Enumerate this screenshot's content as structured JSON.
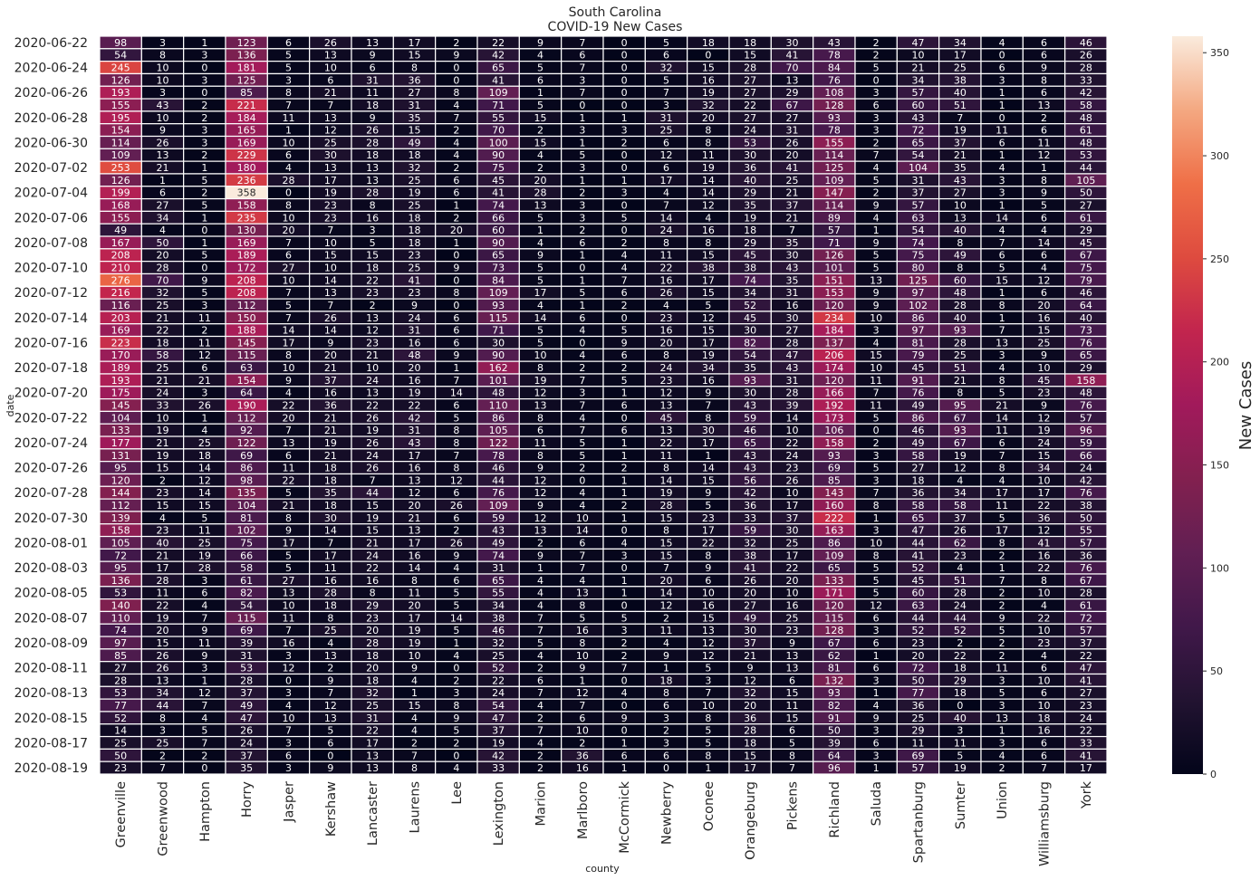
{
  "chart_data": {
    "type": "heatmap",
    "title": "South Carolina",
    "subtitle": "COVID-19 New Cases",
    "xlabel": "county",
    "ylabel": "date",
    "colorbar_label": "New Cases",
    "colorbar_ticks": [
      "0",
      "50",
      "100",
      "150",
      "200",
      "250",
      "300",
      "350"
    ],
    "vmin": 0,
    "vmax": 358,
    "colormap": "rocket",
    "counties": [
      "Greenville",
      "Greenwood",
      "Hampton",
      "Horry",
      "Jasper",
      "Kershaw",
      "Lancaster",
      "Laurens",
      "Lee",
      "Lexington",
      "Marion",
      "Marlboro",
      "McCormick",
      "Newberry",
      "Oconee",
      "Orangeburg",
      "Pickens",
      "Richland",
      "Saluda",
      "Spartanburg",
      "Sumter",
      "Union",
      "Williamsburg",
      "York"
    ],
    "date_tick_labels": [
      "2020-06-22",
      "2020-06-24",
      "2020-06-26",
      "2020-06-28",
      "2020-06-30",
      "2020-07-02",
      "2020-07-04",
      "2020-07-06",
      "2020-07-08",
      "2020-07-10",
      "2020-07-12",
      "2020-07-14",
      "2020-07-16",
      "2020-07-18",
      "2020-07-20",
      "2020-07-22",
      "2020-07-24",
      "2020-07-26",
      "2020-07-28",
      "2020-07-30",
      "2020-08-01",
      "2020-08-03",
      "2020-08-05",
      "2020-08-07",
      "2020-08-09",
      "2020-08-11",
      "2020-08-13",
      "2020-08-15",
      "2020-08-17",
      "2020-08-19"
    ],
    "values": [
      [
        98,
        3,
        1,
        123,
        6,
        26,
        13,
        17,
        2,
        22,
        9,
        7,
        0,
        5,
        18,
        18,
        30,
        43,
        2,
        47,
        34,
        4,
        6,
        46
      ],
      [
        54,
        8,
        3,
        136,
        5,
        13,
        9,
        15,
        9,
        42,
        4,
        6,
        0,
        6,
        0,
        15,
        41,
        78,
        2,
        10,
        17,
        0,
        6,
        26
      ],
      [
        245,
        10,
        0,
        181,
        5,
        10,
        6,
        8,
        0,
        65,
        5,
        7,
        0,
        32,
        15,
        28,
        70,
        84,
        5,
        21,
        25,
        6,
        9,
        28
      ],
      [
        126,
        10,
        3,
        125,
        3,
        6,
        31,
        36,
        0,
        41,
        6,
        3,
        0,
        5,
        16,
        27,
        13,
        76,
        0,
        34,
        38,
        3,
        8,
        33
      ],
      [
        193,
        3,
        0,
        85,
        8,
        21,
        11,
        27,
        8,
        109,
        1,
        7,
        0,
        7,
        19,
        27,
        29,
        108,
        3,
        57,
        40,
        1,
        6,
        42
      ],
      [
        155,
        43,
        2,
        221,
        7,
        7,
        18,
        31,
        4,
        71,
        5,
        0,
        0,
        3,
        32,
        22,
        67,
        128,
        6,
        60,
        51,
        1,
        13,
        58
      ],
      [
        195,
        10,
        2,
        184,
        11,
        13,
        9,
        35,
        7,
        55,
        15,
        1,
        1,
        31,
        20,
        27,
        27,
        93,
        3,
        43,
        7,
        0,
        2,
        48
      ],
      [
        154,
        9,
        3,
        165,
        1,
        12,
        26,
        15,
        2,
        70,
        2,
        3,
        3,
        25,
        8,
        24,
        31,
        78,
        3,
        72,
        19,
        11,
        6,
        61
      ],
      [
        114,
        26,
        3,
        169,
        10,
        25,
        28,
        49,
        4,
        100,
        15,
        1,
        2,
        6,
        8,
        53,
        26,
        155,
        2,
        65,
        37,
        6,
        11,
        48
      ],
      [
        109,
        13,
        2,
        229,
        6,
        30,
        18,
        18,
        4,
        90,
        4,
        5,
        0,
        12,
        11,
        30,
        20,
        114,
        7,
        54,
        21,
        1,
        12,
        53
      ],
      [
        253,
        21,
        1,
        180,
        4,
        13,
        13,
        32,
        2,
        75,
        2,
        3,
        0,
        6,
        19,
        36,
        41,
        125,
        4,
        104,
        35,
        4,
        1,
        44
      ],
      [
        126,
        1,
        5,
        236,
        28,
        17,
        13,
        25,
        6,
        45,
        20,
        1,
        1,
        17,
        14,
        40,
        25,
        109,
        5,
        31,
        43,
        3,
        8,
        105
      ],
      [
        199,
        6,
        2,
        358,
        0,
        19,
        28,
        19,
        6,
        41,
        28,
        2,
        3,
        4,
        14,
        29,
        21,
        147,
        2,
        37,
        27,
        3,
        9,
        50
      ],
      [
        168,
        27,
        5,
        158,
        8,
        23,
        8,
        25,
        1,
        74,
        13,
        3,
        0,
        7,
        12,
        35,
        37,
        114,
        9,
        57,
        10,
        1,
        5,
        27
      ],
      [
        155,
        34,
        1,
        235,
        10,
        23,
        16,
        18,
        2,
        66,
        5,
        3,
        5,
        14,
        4,
        19,
        21,
        89,
        4,
        63,
        13,
        14,
        6,
        61
      ],
      [
        49,
        4,
        0,
        130,
        20,
        7,
        3,
        18,
        20,
        60,
        1,
        2,
        0,
        24,
        16,
        18,
        7,
        57,
        1,
        54,
        40,
        4,
        4,
        29
      ],
      [
        167,
        50,
        1,
        169,
        7,
        10,
        5,
        18,
        1,
        90,
        4,
        6,
        2,
        8,
        8,
        29,
        35,
        71,
        9,
        74,
        8,
        7,
        14,
        45
      ],
      [
        208,
        20,
        5,
        189,
        6,
        15,
        15,
        23,
        0,
        65,
        9,
        1,
        4,
        11,
        15,
        45,
        30,
        126,
        5,
        75,
        49,
        6,
        6,
        67
      ],
      [
        210,
        28,
        0,
        172,
        27,
        10,
        18,
        25,
        9,
        73,
        5,
        0,
        4,
        22,
        38,
        38,
        43,
        101,
        5,
        80,
        8,
        5,
        4,
        75
      ],
      [
        276,
        70,
        9,
        208,
        10,
        14,
        22,
        41,
        0,
        84,
        5,
        1,
        7,
        16,
        17,
        74,
        35,
        151,
        13,
        125,
        60,
        15,
        12,
        79
      ],
      [
        216,
        32,
        5,
        208,
        7,
        13,
        23,
        23,
        8,
        109,
        17,
        5,
        6,
        26,
        15,
        34,
        31,
        153,
        9,
        97,
        48,
        1,
        6,
        46
      ],
      [
        116,
        25,
        3,
        112,
        5,
        7,
        2,
        9,
        0,
        93,
        4,
        1,
        2,
        4,
        5,
        52,
        16,
        120,
        9,
        102,
        28,
        8,
        20,
        64
      ],
      [
        203,
        21,
        11,
        150,
        7,
        26,
        13,
        24,
        6,
        115,
        14,
        6,
        0,
        23,
        12,
        45,
        30,
        234,
        10,
        86,
        40,
        1,
        16,
        40
      ],
      [
        169,
        22,
        2,
        188,
        14,
        14,
        12,
        31,
        6,
        71,
        5,
        4,
        5,
        16,
        15,
        30,
        27,
        184,
        3,
        97,
        93,
        7,
        15,
        73
      ],
      [
        223,
        18,
        11,
        145,
        17,
        9,
        23,
        16,
        6,
        30,
        5,
        0,
        9,
        20,
        17,
        82,
        28,
        137,
        4,
        81,
        28,
        13,
        25,
        76
      ],
      [
        170,
        58,
        12,
        115,
        8,
        20,
        21,
        48,
        9,
        90,
        10,
        4,
        6,
        8,
        19,
        54,
        47,
        206,
        15,
        79,
        25,
        3,
        9,
        65
      ],
      [
        189,
        25,
        6,
        63,
        10,
        21,
        10,
        20,
        1,
        162,
        8,
        2,
        2,
        24,
        34,
        35,
        43,
        174,
        10,
        45,
        51,
        4,
        10,
        29
      ],
      [
        193,
        21,
        21,
        154,
        9,
        37,
        24,
        16,
        7,
        101,
        19,
        7,
        5,
        23,
        16,
        93,
        31,
        120,
        11,
        91,
        21,
        8,
        45,
        158
      ],
      [
        175,
        24,
        3,
        64,
        4,
        16,
        13,
        19,
        14,
        48,
        12,
        3,
        1,
        12,
        9,
        30,
        28,
        166,
        7,
        76,
        8,
        5,
        23,
        48
      ],
      [
        145,
        33,
        26,
        190,
        22,
        36,
        22,
        22,
        6,
        110,
        13,
        7,
        6,
        13,
        7,
        43,
        39,
        192,
        11,
        49,
        95,
        21,
        9,
        76
      ],
      [
        104,
        10,
        1,
        112,
        20,
        21,
        26,
        42,
        5,
        86,
        8,
        4,
        0,
        45,
        8,
        59,
        14,
        173,
        5,
        86,
        67,
        14,
        12,
        57
      ],
      [
        133,
        19,
        4,
        92,
        7,
        21,
        19,
        31,
        8,
        105,
        6,
        7,
        6,
        13,
        30,
        46,
        10,
        106,
        0,
        46,
        93,
        11,
        19,
        96
      ],
      [
        177,
        21,
        25,
        122,
        13,
        19,
        26,
        43,
        8,
        122,
        11,
        5,
        1,
        22,
        17,
        65,
        22,
        158,
        2,
        49,
        67,
        6,
        24,
        59
      ],
      [
        131,
        19,
        18,
        69,
        6,
        21,
        24,
        17,
        7,
        78,
        8,
        5,
        1,
        11,
        1,
        43,
        24,
        93,
        3,
        58,
        19,
        7,
        15,
        66
      ],
      [
        95,
        15,
        14,
        86,
        11,
        18,
        26,
        16,
        8,
        46,
        9,
        2,
        2,
        8,
        14,
        43,
        23,
        69,
        5,
        27,
        12,
        8,
        34,
        24
      ],
      [
        120,
        2,
        12,
        98,
        22,
        18,
        7,
        13,
        12,
        44,
        12,
        0,
        1,
        14,
        15,
        56,
        26,
        85,
        3,
        18,
        4,
        4,
        10,
        42
      ],
      [
        144,
        23,
        14,
        135,
        5,
        35,
        44,
        12,
        6,
        76,
        12,
        4,
        1,
        19,
        9,
        42,
        10,
        143,
        7,
        36,
        34,
        17,
        17,
        76
      ],
      [
        112,
        15,
        15,
        104,
        21,
        18,
        15,
        20,
        26,
        109,
        9,
        4,
        2,
        28,
        5,
        36,
        17,
        160,
        8,
        58,
        58,
        11,
        22,
        38
      ],
      [
        139,
        4,
        5,
        81,
        8,
        30,
        19,
        21,
        6,
        59,
        12,
        10,
        1,
        15,
        23,
        33,
        37,
        222,
        1,
        65,
        37,
        5,
        36,
        50
      ],
      [
        158,
        23,
        11,
        102,
        9,
        14,
        15,
        13,
        2,
        43,
        13,
        14,
        0,
        8,
        17,
        59,
        30,
        163,
        3,
        47,
        26,
        17,
        12,
        55
      ],
      [
        105,
        40,
        25,
        75,
        17,
        7,
        21,
        17,
        26,
        49,
        2,
        6,
        4,
        15,
        22,
        32,
        25,
        86,
        10,
        44,
        62,
        8,
        41,
        57
      ],
      [
        72,
        21,
        19,
        66,
        5,
        17,
        24,
        16,
        9,
        74,
        9,
        7,
        3,
        15,
        8,
        38,
        17,
        109,
        8,
        41,
        23,
        2,
        16,
        36
      ],
      [
        95,
        17,
        28,
        58,
        5,
        11,
        22,
        14,
        4,
        31,
        1,
        7,
        0,
        7,
        9,
        41,
        22,
        65,
        5,
        52,
        4,
        1,
        22,
        76
      ],
      [
        136,
        28,
        3,
        61,
        27,
        16,
        16,
        8,
        6,
        65,
        4,
        4,
        1,
        20,
        6,
        26,
        20,
        133,
        5,
        45,
        51,
        7,
        8,
        67
      ],
      [
        53,
        11,
        6,
        82,
        13,
        28,
        8,
        11,
        5,
        55,
        4,
        13,
        1,
        14,
        10,
        20,
        10,
        171,
        5,
        60,
        28,
        2,
        10,
        28
      ],
      [
        140,
        22,
        4,
        54,
        10,
        18,
        29,
        20,
        5,
        34,
        4,
        8,
        0,
        12,
        16,
        27,
        16,
        120,
        12,
        63,
        24,
        2,
        4,
        61
      ],
      [
        110,
        19,
        7,
        115,
        11,
        8,
        23,
        17,
        14,
        38,
        7,
        5,
        5,
        2,
        15,
        49,
        25,
        115,
        6,
        44,
        44,
        9,
        22,
        72
      ],
      [
        74,
        20,
        9,
        69,
        7,
        25,
        20,
        19,
        5,
        46,
        7,
        16,
        3,
        11,
        13,
        30,
        23,
        128,
        3,
        52,
        52,
        5,
        10,
        57
      ],
      [
        97,
        15,
        11,
        39,
        16,
        4,
        28,
        19,
        1,
        32,
        5,
        8,
        2,
        4,
        12,
        37,
        9,
        67,
        6,
        23,
        2,
        2,
        23,
        37
      ],
      [
        85,
        26,
        9,
        31,
        3,
        13,
        18,
        10,
        4,
        25,
        4,
        10,
        2,
        9,
        12,
        21,
        13,
        62,
        1,
        20,
        22,
        2,
        4,
        22
      ],
      [
        27,
        26,
        3,
        53,
        12,
        2,
        20,
        9,
        0,
        52,
        2,
        9,
        7,
        1,
        5,
        9,
        13,
        81,
        6,
        72,
        18,
        11,
        6,
        47
      ],
      [
        28,
        13,
        1,
        28,
        0,
        9,
        18,
        4,
        2,
        22,
        6,
        1,
        0,
        18,
        3,
        12,
        6,
        132,
        3,
        50,
        29,
        3,
        10,
        41
      ],
      [
        53,
        34,
        12,
        37,
        3,
        7,
        32,
        1,
        3,
        24,
        7,
        12,
        4,
        8,
        7,
        32,
        15,
        93,
        1,
        77,
        18,
        5,
        6,
        27
      ],
      [
        77,
        44,
        7,
        49,
        4,
        12,
        25,
        15,
        8,
        54,
        4,
        7,
        0,
        6,
        10,
        20,
        11,
        82,
        4,
        36,
        0,
        3,
        10,
        23
      ],
      [
        52,
        8,
        4,
        47,
        10,
        13,
        31,
        4,
        9,
        47,
        2,
        6,
        9,
        3,
        8,
        36,
        15,
        91,
        9,
        25,
        40,
        13,
        18,
        24
      ],
      [
        14,
        3,
        5,
        26,
        7,
        5,
        22,
        4,
        5,
        37,
        7,
        10,
        0,
        2,
        5,
        28,
        6,
        50,
        3,
        29,
        3,
        1,
        16,
        22
      ],
      [
        25,
        25,
        7,
        24,
        3,
        6,
        17,
        2,
        2,
        19,
        4,
        2,
        1,
        3,
        5,
        18,
        5,
        39,
        6,
        11,
        11,
        3,
        6,
        33
      ],
      [
        50,
        2,
        2,
        37,
        6,
        0,
        13,
        7,
        0,
        42,
        2,
        36,
        6,
        6,
        8,
        15,
        8,
        64,
        3,
        69,
        5,
        4,
        6,
        41
      ],
      [
        23,
        7,
        0,
        35,
        3,
        9,
        13,
        8,
        4,
        33,
        2,
        16,
        1,
        0,
        1,
        17,
        7,
        96,
        1,
        57,
        19,
        2,
        7,
        17
      ]
    ]
  }
}
